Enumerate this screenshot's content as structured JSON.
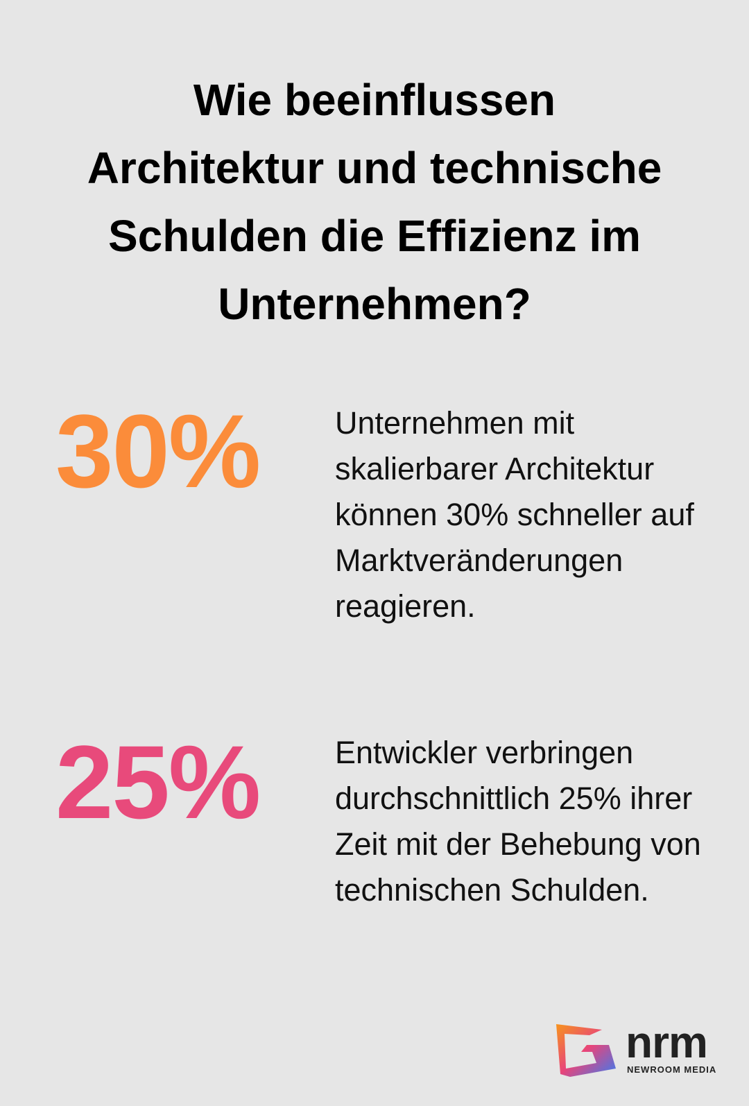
{
  "header": {
    "title": [
      "Wie beeinflussen",
      "Architektur und technische",
      "Schulden die Effizienz im",
      "Unternehmen?"
    ]
  },
  "stats": [
    {
      "value": "30%",
      "color": "#fb8c3a",
      "text": "Unternehmen mit skalierbarer Architektur können 30% schneller auf Marktveränderungen reagieren."
    },
    {
      "value": "25%",
      "color": "#e84a7b",
      "text": "Entwickler verbringen durchschnittlich 25% ihrer Zeit mit der Behebung von technischen Schulden."
    }
  ],
  "logo": {
    "name": "nrm",
    "subtitle": "NEWROOM MEDIA"
  }
}
